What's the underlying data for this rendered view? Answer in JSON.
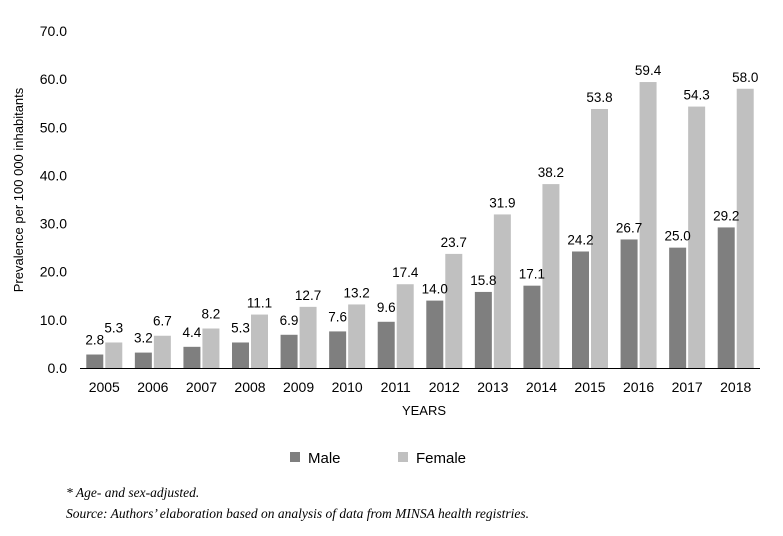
{
  "chart_data": {
    "type": "bar",
    "categories": [
      "2005",
      "2006",
      "2007",
      "2008",
      "2009",
      "2010",
      "2011",
      "2012",
      "2013",
      "2014",
      "2015",
      "2016",
      "2017",
      "2018"
    ],
    "series": [
      {
        "name": "Male",
        "values": [
          2.8,
          3.2,
          4.4,
          5.3,
          6.9,
          7.6,
          9.6,
          14.0,
          15.8,
          17.1,
          24.2,
          26.7,
          25.0,
          29.2
        ],
        "color": "#7f7f7f"
      },
      {
        "name": "Female",
        "values": [
          5.3,
          6.7,
          8.2,
          11.1,
          12.7,
          13.2,
          17.4,
          23.7,
          31.9,
          38.2,
          53.8,
          59.4,
          54.3,
          58.0
        ],
        "color": "#c0c0c0"
      }
    ],
    "xlabel": "YEARS",
    "ylabel": "Prevalence per 100 000 inhabitants",
    "ylim": [
      0,
      70
    ],
    "yticks": [
      0,
      10,
      20,
      30,
      40,
      50,
      60,
      70
    ],
    "grid": false,
    "legend_position": "bottom",
    "data_labels": true
  },
  "notes": {
    "line1": "* Age- and sex-adjusted.",
    "line2": "Source: Authors’ elaboration based on analysis of data from MINSA health registries."
  }
}
